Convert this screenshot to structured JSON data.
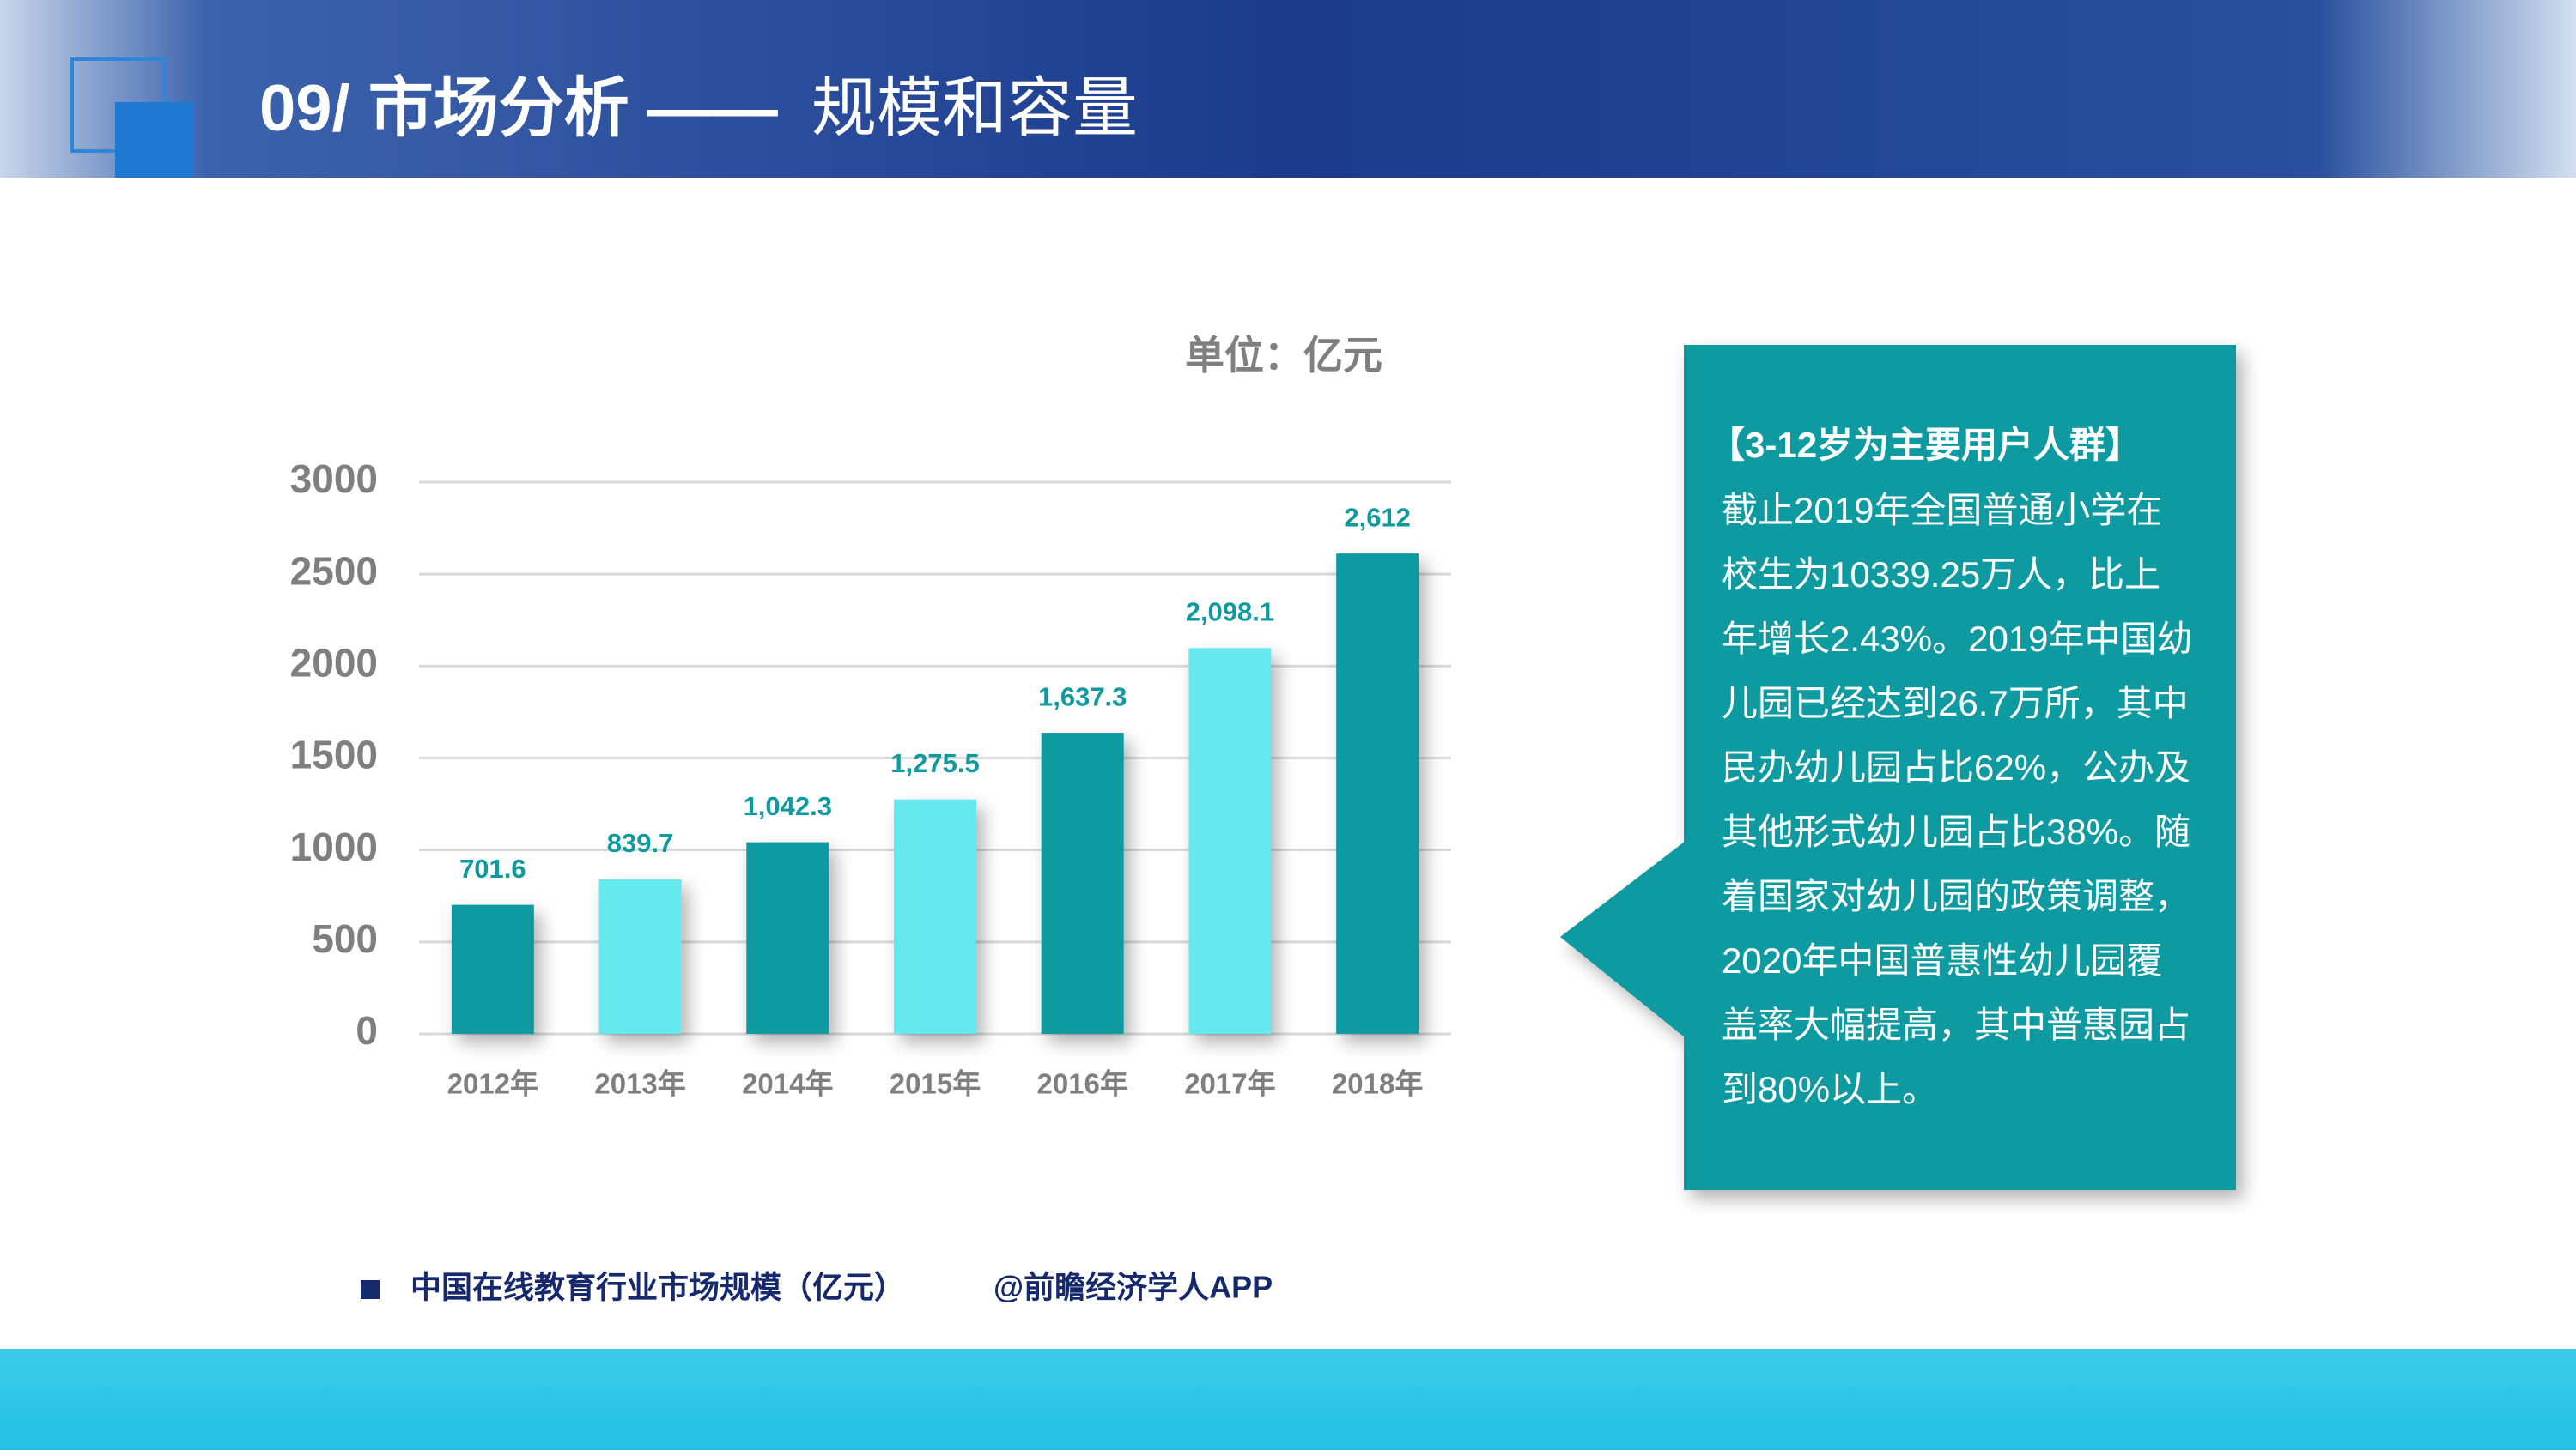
{
  "header": {
    "title": "09/ 市场分析 ——",
    "subtitle": "规模和容量"
  },
  "chart_data": {
    "type": "bar",
    "unit": "单位：亿元",
    "categories": [
      "2012年",
      "2013年",
      "2014年",
      "2015年",
      "2016年",
      "2017年",
      "2018年"
    ],
    "values": [
      701.6,
      839.7,
      1042.3,
      1275.5,
      1637.3,
      2098.1,
      2612
    ],
    "value_labels": [
      "701.6",
      "839.7",
      "1,042.3",
      "1,275.5",
      "1,637.3",
      "2,098.1",
      "2,612"
    ],
    "colors": [
      "#0f9aa0",
      "#66e8ef",
      "#0f9aa0",
      "#66e8ef",
      "#0f9aa0",
      "#66e8ef",
      "#0f9aa0"
    ],
    "label_color": "#0f9aa0",
    "ylim": [
      0,
      3000
    ],
    "yticks": [
      0,
      500,
      1000,
      1500,
      2000,
      2500,
      3000
    ],
    "grid": true
  },
  "callout": {
    "heading": "【3-12岁为主要用户人群】",
    "lines": [
      "截止2019年全国普通小学在",
      "校生为10339.25万人，比上",
      "年增长2.43%。2019年中国幼",
      "儿园已经达到26.7万所，其中",
      "民办幼儿园占比62%，公办及",
      "其他形式幼儿园占比38%。随",
      "着国家对幼儿园的政策调整，",
      "2020年中国普惠性幼儿园覆",
      "盖率大幅提高，其中普惠园占",
      "到80%以上。"
    ]
  },
  "footer": {
    "caption": "中国在线教育行业市场规模（亿元）",
    "source": "@前瞻经济学人APP"
  }
}
